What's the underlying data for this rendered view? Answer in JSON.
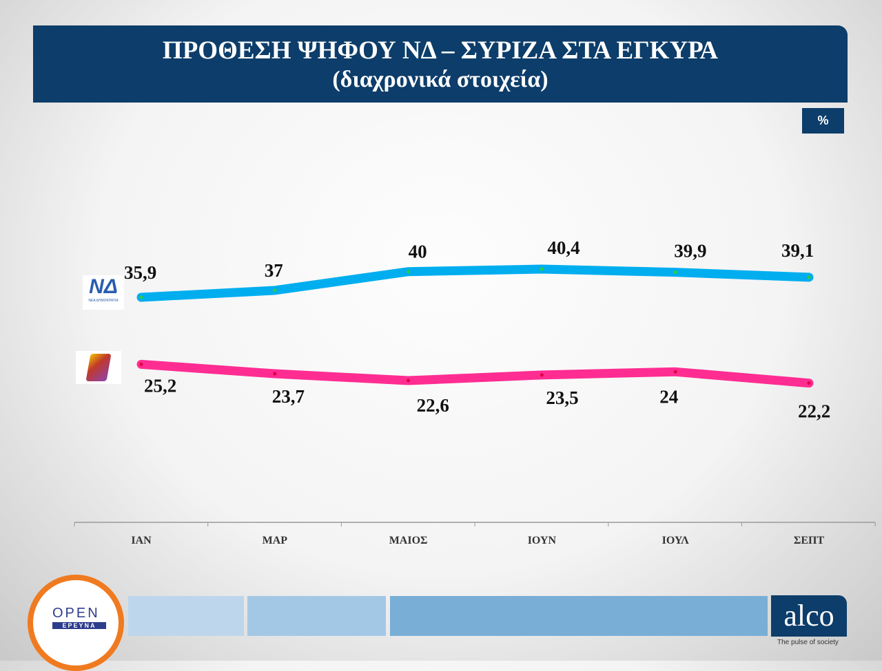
{
  "header": {
    "title": "ΠΡΟΘΕΣΗ ΨΗΦΟΥ ΝΔ – ΣΥΡΙΖΑ ΣΤΑ ΕΓΚΥΡΑ",
    "subtitle": "(διαχρονικά στοιχεία)",
    "unit": "%"
  },
  "chart_data": {
    "type": "line",
    "title": "ΠΡΟΘΕΣΗ ΨΗΦΟΥ ΝΔ – ΣΥΡΙΖΑ ΣΤΑ ΕΓΚΥΡΑ",
    "subtitle": "(διαχρονικά στοιχεία)",
    "ylabel": "%",
    "categories": [
      "ΙΑΝ",
      "ΜΑΡ",
      "ΜΑΙΟΣ",
      "ΙΟΥΝ",
      "ΙΟΥΛ",
      "ΣΕΠΤ"
    ],
    "series": [
      {
        "name": "ΝΔ",
        "color": "#00aeef",
        "values": [
          35.9,
          37,
          40,
          40.4,
          39.9,
          39.1
        ],
        "labels": [
          "35,9",
          "37",
          "40",
          "40,4",
          "39,9",
          "39,1"
        ]
      },
      {
        "name": "ΣΥΡΙΖΑ",
        "color": "#ff2d92",
        "values": [
          25.2,
          23.7,
          22.6,
          23.5,
          24,
          22.2
        ],
        "labels": [
          "25,2",
          "23,7",
          "22,6",
          "23,5",
          "24",
          "22,2"
        ]
      }
    ]
  },
  "logos": {
    "nd": "ΝΔ",
    "nd_sub": "ΝΕΑ ΔΗΜΟΚΡΑΤΙΑ",
    "open": "OPEN",
    "open_sub": "ΕΡΕΥΝΑ",
    "alco": "alco",
    "alco_tag": "The pulse of society"
  }
}
